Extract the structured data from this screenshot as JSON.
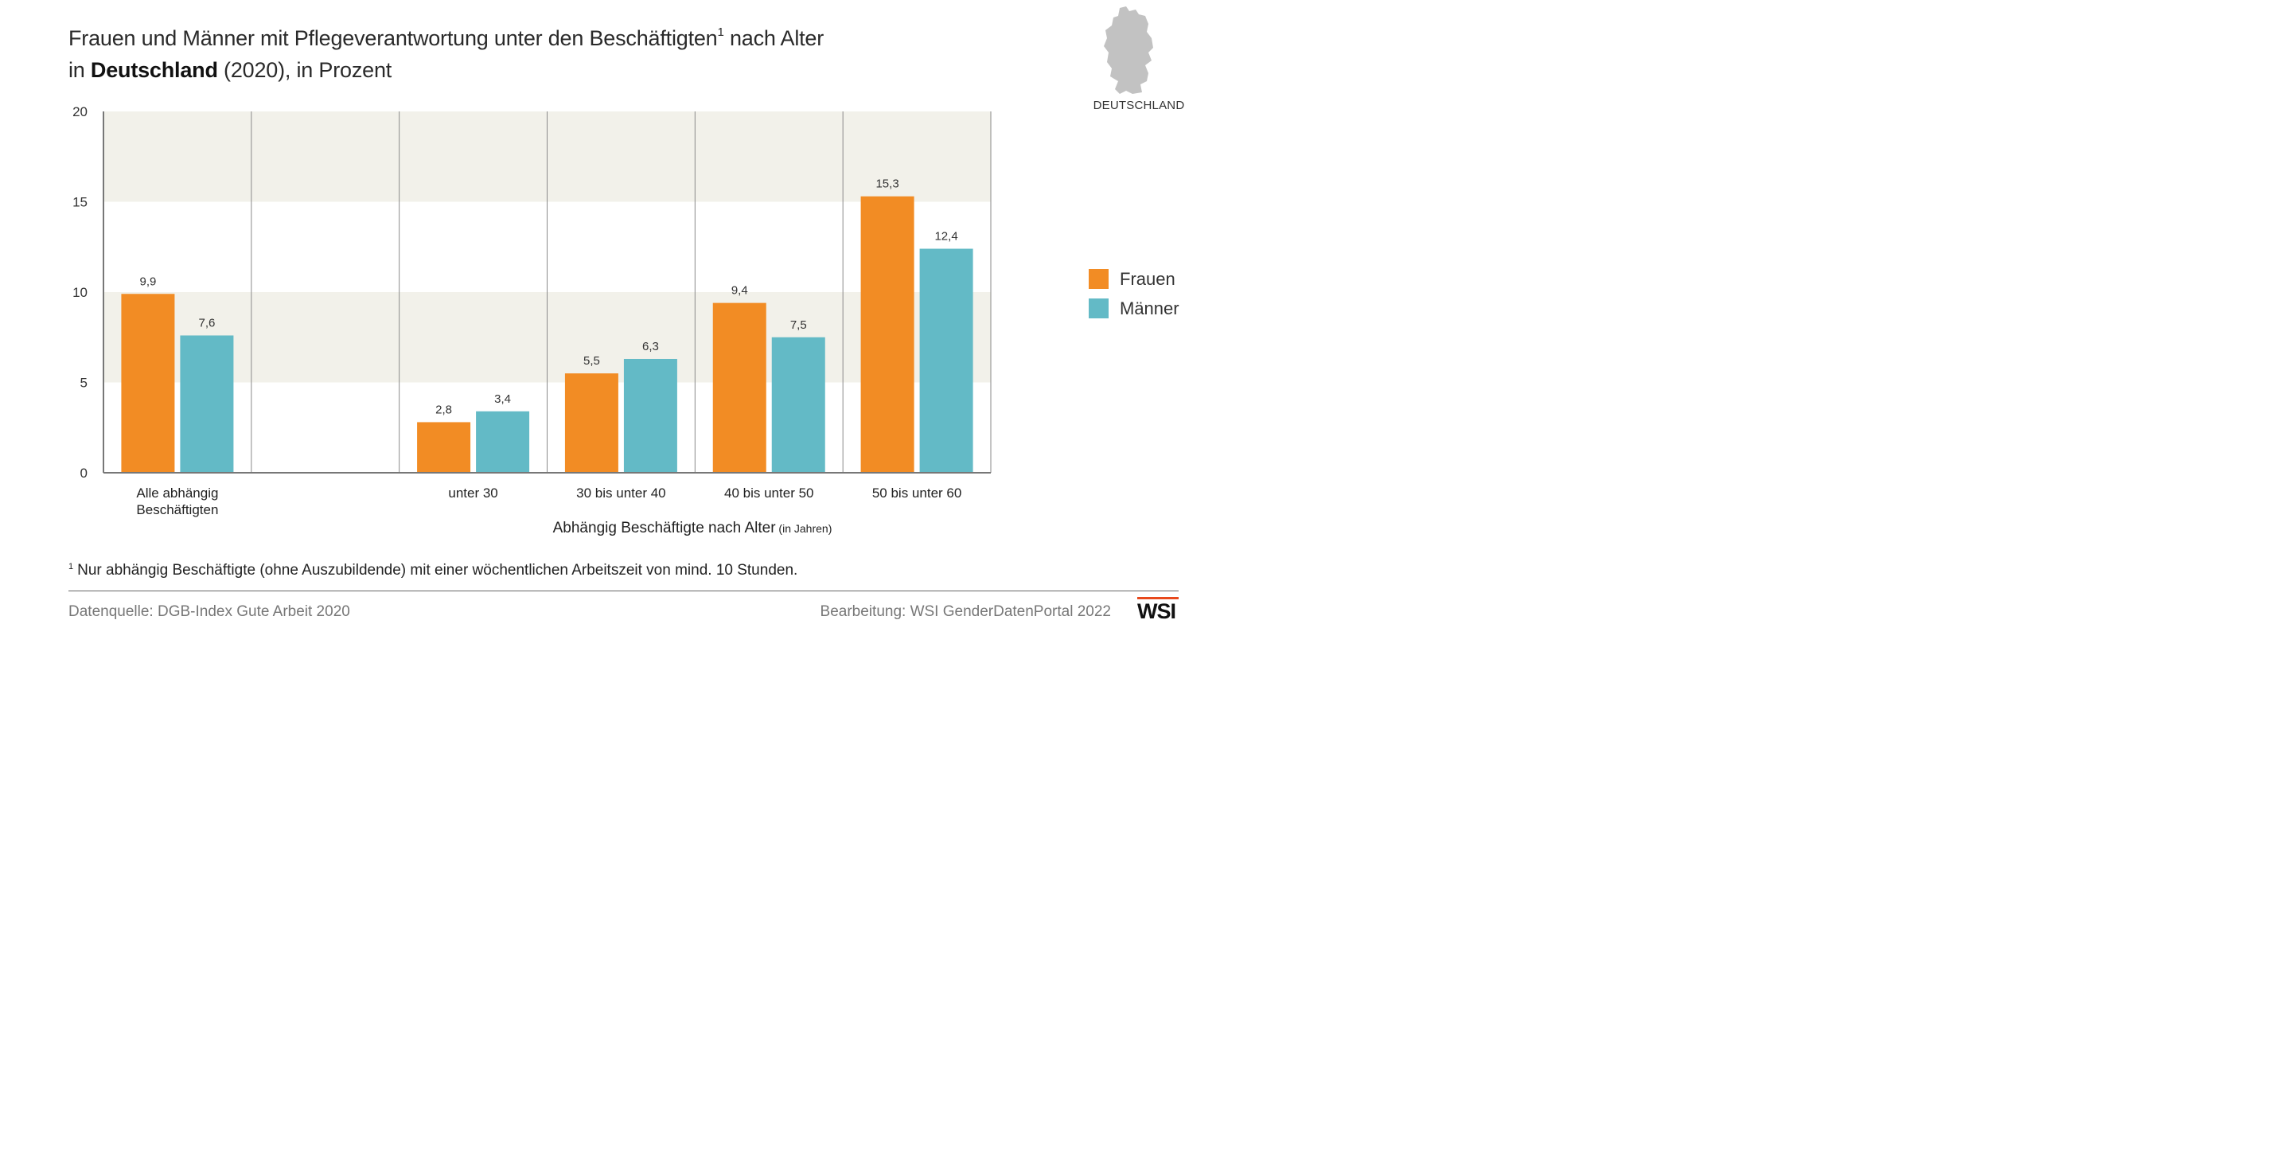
{
  "title": {
    "line1_pre": "Frauen und Männer mit Pflegeverantwortung unter den Beschäftigten",
    "line1_sup": "1",
    "line1_post": " nach Alter",
    "line2_pre": "in ",
    "line2_bold": "Deutschland",
    "line2_post": " (2020), in Prozent"
  },
  "map": {
    "label": "DEUTSCHLAND",
    "icon": "germany-map-icon"
  },
  "colors": {
    "frauen": "#f28c24",
    "maenner": "#63bac6",
    "band": "#f2f1ea",
    "axis": "#777777"
  },
  "chart_data": {
    "type": "bar",
    "categories": [
      "Alle abhängig Beschäftigten",
      "",
      "unter 30",
      "30 bis unter 40",
      "40 bis unter 50",
      "50 bis unter 60"
    ],
    "series": [
      {
        "name": "Frauen",
        "values": [
          9.9,
          null,
          2.8,
          5.5,
          9.4,
          15.3
        ],
        "labels": [
          "9,9",
          "",
          "2,8",
          "5,5",
          "9,4",
          "15,3"
        ]
      },
      {
        "name": "Männer",
        "values": [
          7.6,
          null,
          3.4,
          6.3,
          7.5,
          12.4
        ],
        "labels": [
          "7,6",
          "",
          "3,4",
          "6,3",
          "7,5",
          "12,4"
        ]
      }
    ],
    "ylim": [
      0,
      20
    ],
    "yticks": [
      "0",
      "5",
      "10",
      "15",
      "20"
    ],
    "xlabel": "Abhängig Beschäftigte nach Alter",
    "xlabel_sub": "(in Jahren)",
    "ylabel": "",
    "legend_position": "right"
  },
  "footnote": {
    "marker": "1",
    "text": "Nur abhängig Beschäftigte (ohne Auszubildende) mit einer wöchentlichen Arbeitszeit von mind. 10 Stunden."
  },
  "source": "Datenquelle: DGB-Index Gute Arbeit 2020",
  "credit": "Bearbeitung: WSI GenderDatenPortal 2022",
  "logo": "WSI"
}
